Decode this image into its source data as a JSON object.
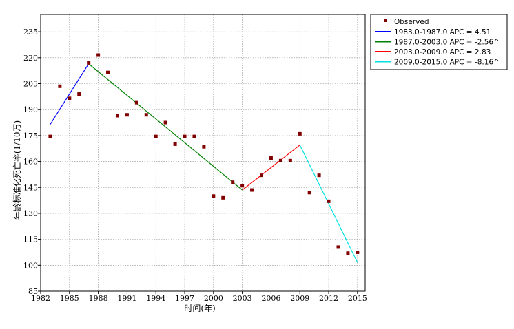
{
  "chart_data": {
    "type": "scatter",
    "title": "",
    "xlabel": "时间(年)",
    "ylabel": "年龄标准化死亡率(1/10万)",
    "xlim": [
      1982,
      2015.8
    ],
    "ylim": [
      85,
      245
    ],
    "x_ticks": [
      1982,
      1985,
      1988,
      1991,
      1994,
      1997,
      2000,
      2003,
      2006,
      2009,
      2012,
      2015
    ],
    "y_ticks": [
      85,
      100,
      115,
      130,
      145,
      160,
      175,
      190,
      205,
      220,
      235
    ],
    "grid": true,
    "legend_position": "outside-top-right",
    "observed": {
      "name": "Observed",
      "color": "#800000",
      "x": [
        1983,
        1984,
        1985,
        1986,
        1987,
        1988,
        1989,
        1990,
        1991,
        1992,
        1993,
        1994,
        1995,
        1996,
        1997,
        1998,
        1999,
        2000,
        2001,
        2002,
        2003,
        2004,
        2005,
        2006,
        2007,
        2008,
        2009,
        2010,
        2011,
        2012,
        2013,
        2014,
        2015
      ],
      "y": [
        174.5,
        203.5,
        196.5,
        199,
        217,
        221.5,
        211.5,
        186.5,
        187,
        194,
        187,
        174.5,
        182.5,
        170,
        174.5,
        174.5,
        168.5,
        140,
        139,
        148,
        146,
        143.5,
        152,
        162,
        160.5,
        160.5,
        176,
        142,
        152,
        137,
        110.5,
        107,
        107.5
      ]
    },
    "segments": [
      {
        "name": "1983.0-1987.0 APC  =  4.51",
        "color": "#0000ff",
        "x": [
          1983,
          1987
        ],
        "y": [
          181.5,
          216.5
        ]
      },
      {
        "name": "1987.0-2003.0 APC  = -2.56^",
        "color": "#008000",
        "x": [
          1987,
          2003
        ],
        "y": [
          216.5,
          143.5
        ]
      },
      {
        "name": "2003.0-2009.0 APC  =  2.83",
        "color": "#ff0000",
        "x": [
          2003,
          2009
        ],
        "y": [
          143.5,
          169.5
        ]
      },
      {
        "name": "2009.0-2015.0 APC  = -8.16^",
        "color": "#00e0e0",
        "x": [
          2009,
          2015
        ],
        "y": [
          169.5,
          101.5
        ]
      }
    ]
  }
}
